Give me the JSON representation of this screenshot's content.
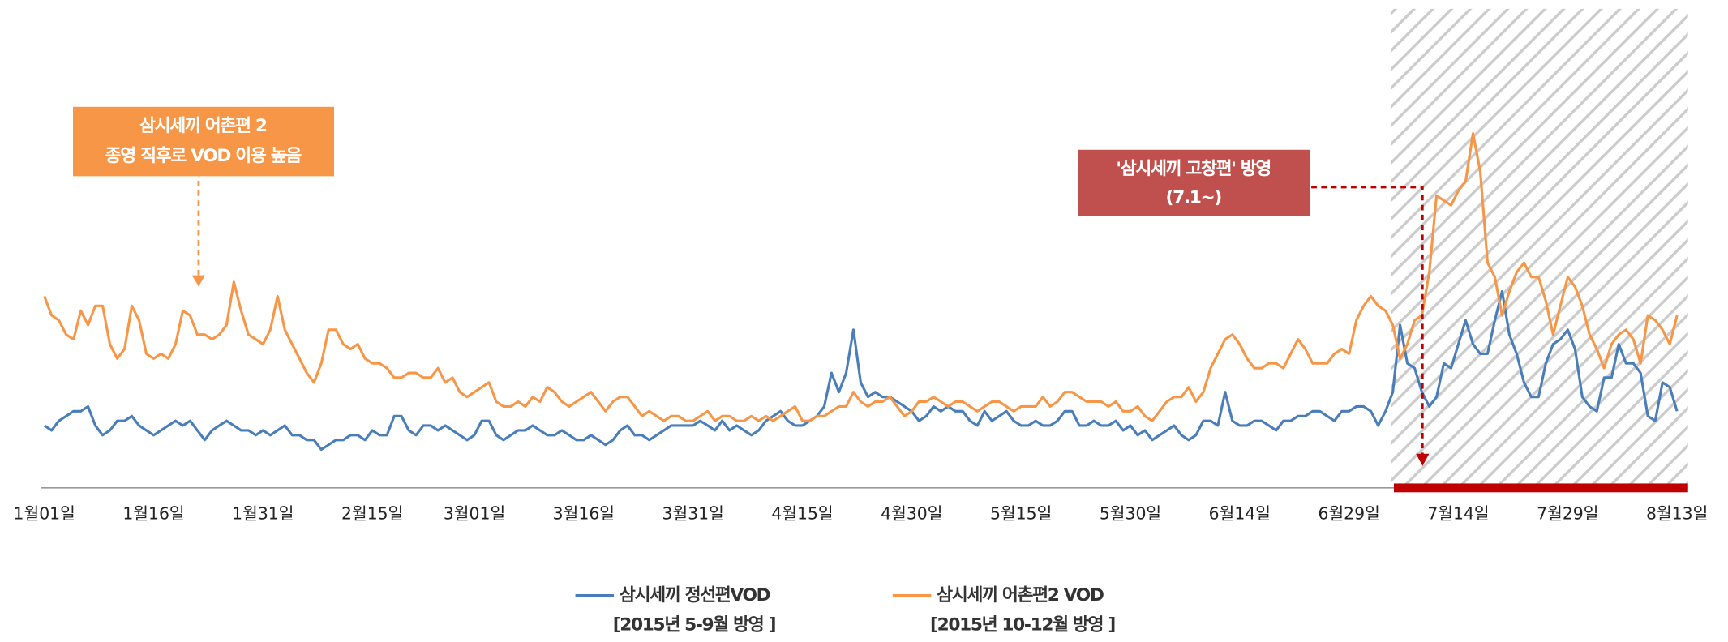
{
  "chart_data": {
    "type": "line",
    "categories": [
      "1월01일",
      null,
      null,
      null,
      null,
      null,
      null,
      null,
      null,
      null,
      null,
      null,
      null,
      null,
      null,
      "1월16일",
      null,
      null,
      null,
      null,
      null,
      null,
      null,
      null,
      null,
      null,
      null,
      null,
      null,
      null,
      "1월31일",
      null,
      null,
      null,
      null,
      null,
      null,
      null,
      null,
      null,
      null,
      null,
      null,
      null,
      null,
      "2월15일",
      null,
      null,
      null,
      null,
      null,
      null,
      null,
      null,
      null,
      null,
      null,
      null,
      null,
      "3월01일",
      null,
      null,
      null,
      null,
      null,
      null,
      null,
      null,
      null,
      null,
      null,
      null,
      null,
      null,
      "3월16일",
      null,
      null,
      null,
      null,
      null,
      null,
      null,
      null,
      null,
      null,
      null,
      null,
      null,
      null,
      "3월31일",
      null,
      null,
      null,
      null,
      null,
      null,
      null,
      null,
      null,
      null,
      null,
      null,
      null,
      null,
      "4월15일",
      null,
      null,
      null,
      null,
      null,
      null,
      null,
      null,
      null,
      null,
      null,
      null,
      null,
      null,
      "4월30일",
      null,
      null,
      null,
      null,
      null,
      null,
      null,
      null,
      null,
      null,
      null,
      null,
      null,
      null,
      "5월15일",
      null,
      null,
      null,
      null,
      null,
      null,
      null,
      null,
      null,
      null,
      null,
      null,
      null,
      null,
      "5월30일",
      null,
      null,
      null,
      null,
      null,
      null,
      null,
      null,
      null,
      null,
      null,
      null,
      null,
      null,
      "6월14일",
      null,
      null,
      null,
      null,
      null,
      null,
      null,
      null,
      null,
      null,
      null,
      null,
      null,
      null,
      "6월29일",
      null,
      null,
      null,
      null,
      null,
      null,
      null,
      null,
      null,
      null,
      null,
      null,
      null,
      null,
      "7월14일",
      null,
      null,
      null,
      null,
      null,
      null,
      null,
      null,
      null,
      null,
      null,
      null,
      null,
      null,
      "7월29일",
      null,
      null,
      null,
      null,
      null,
      null,
      null,
      null,
      null,
      null,
      null,
      null,
      null,
      null,
      "8월13일"
    ],
    "series": [
      {
        "name": "삼시세끼 정선편VOD",
        "note": "[2015년 5-9월 방영 ]",
        "color": "#4a7ebb",
        "values": [
          13,
          12,
          14,
          15,
          16,
          16,
          17,
          13,
          11,
          12,
          14,
          14,
          15,
          13,
          12,
          11,
          12,
          13,
          14,
          13,
          14,
          12,
          10,
          12,
          13,
          14,
          13,
          12,
          12,
          11,
          12,
          11,
          12,
          13,
          11,
          11,
          10,
          10,
          8,
          9,
          10,
          10,
          11,
          11,
          10,
          12,
          11,
          11,
          15,
          15,
          12,
          11,
          13,
          13,
          12,
          13,
          12,
          11,
          10,
          11,
          14,
          14,
          11,
          10,
          11,
          12,
          12,
          13,
          12,
          11,
          11,
          12,
          11,
          10,
          10,
          11,
          10,
          9,
          10,
          12,
          13,
          11,
          11,
          10,
          11,
          12,
          13,
          13,
          13,
          13,
          14,
          13,
          12,
          14,
          12,
          13,
          12,
          11,
          12,
          14,
          15,
          16,
          14,
          13,
          13,
          14,
          15,
          17,
          24,
          20,
          24,
          33,
          22,
          19,
          20,
          19,
          19,
          18,
          17,
          16,
          14,
          15,
          17,
          16,
          17,
          16,
          16,
          14,
          13,
          16,
          14,
          15,
          16,
          14,
          13,
          13,
          14,
          13,
          13,
          14,
          16,
          16,
          13,
          13,
          14,
          13,
          13,
          14,
          12,
          13,
          11,
          12,
          10,
          11,
          12,
          13,
          11,
          10,
          11,
          14,
          14,
          13,
          20,
          14,
          13,
          13,
          14,
          14,
          13,
          12,
          14,
          14,
          15,
          15,
          16,
          16,
          15,
          14,
          16,
          16,
          17,
          17,
          16,
          13,
          16,
          20,
          34,
          26,
          25,
          20,
          17,
          19,
          26,
          25,
          30,
          35,
          30,
          28,
          28,
          35,
          41,
          32,
          28,
          22,
          19,
          19,
          26,
          30,
          31,
          33,
          29,
          19,
          17,
          16,
          23,
          23,
          30,
          26,
          26,
          24,
          15,
          14,
          22,
          21,
          16
        ]
      },
      {
        "name": "삼시세끼 어촌편2 VOD",
        "note": "[2015년 10-12월 방영 ]",
        "color": "#f79646",
        "values": [
          40,
          36,
          35,
          32,
          31,
          37,
          34,
          38,
          38,
          30,
          27,
          29,
          38,
          35,
          28,
          27,
          28,
          27,
          30,
          37,
          36,
          32,
          32,
          31,
          32,
          34,
          43,
          37,
          32,
          31,
          30,
          33,
          40,
          33,
          30,
          27,
          24,
          22,
          26,
          33,
          33,
          30,
          29,
          30,
          27,
          26,
          26,
          25,
          23,
          23,
          24,
          24,
          23,
          23,
          25,
          22,
          23,
          20,
          19,
          20,
          21,
          22,
          18,
          17,
          17,
          18,
          17,
          19,
          18,
          21,
          20,
          18,
          17,
          18,
          19,
          20,
          18,
          16,
          18,
          19,
          19,
          17,
          15,
          16,
          15,
          14,
          15,
          15,
          14,
          14,
          15,
          16,
          14,
          15,
          15,
          14,
          14,
          15,
          14,
          15,
          14,
          15,
          16,
          17,
          14,
          14,
          15,
          15,
          16,
          17,
          17,
          20,
          18,
          17,
          18,
          18,
          19,
          17,
          15,
          16,
          18,
          18,
          19,
          18,
          17,
          18,
          18,
          17,
          16,
          17,
          18,
          18,
          17,
          16,
          17,
          17,
          17,
          19,
          17,
          18,
          20,
          20,
          19,
          18,
          18,
          18,
          17,
          18,
          16,
          16,
          17,
          15,
          14,
          16,
          18,
          19,
          19,
          21,
          18,
          20,
          25,
          28,
          31,
          32,
          30,
          27,
          25,
          25,
          26,
          26,
          25,
          28,
          31,
          29,
          26,
          26,
          26,
          28,
          29,
          28,
          35,
          38,
          40,
          38,
          37,
          34,
          27,
          30,
          35,
          36,
          45,
          61,
          60,
          59,
          62,
          64,
          74,
          66,
          47,
          44,
          36,
          41,
          45,
          47,
          44,
          44,
          39,
          32,
          38,
          44,
          42,
          38,
          32,
          29,
          25,
          30,
          32,
          33,
          31,
          26,
          36,
          35,
          33,
          30,
          36
        ]
      }
    ],
    "ylim": [
      0,
      100
    ],
    "annotations": [
      {
        "lines": [
          "삼시세끼 어촌편 2",
          "종영 직후로 VOD 이용 높음"
        ],
        "color": "#f79646"
      },
      {
        "lines": [
          "'삼시세끼 고창편' 방영",
          "(7.1~)"
        ],
        "color": "#c0504d"
      }
    ]
  }
}
